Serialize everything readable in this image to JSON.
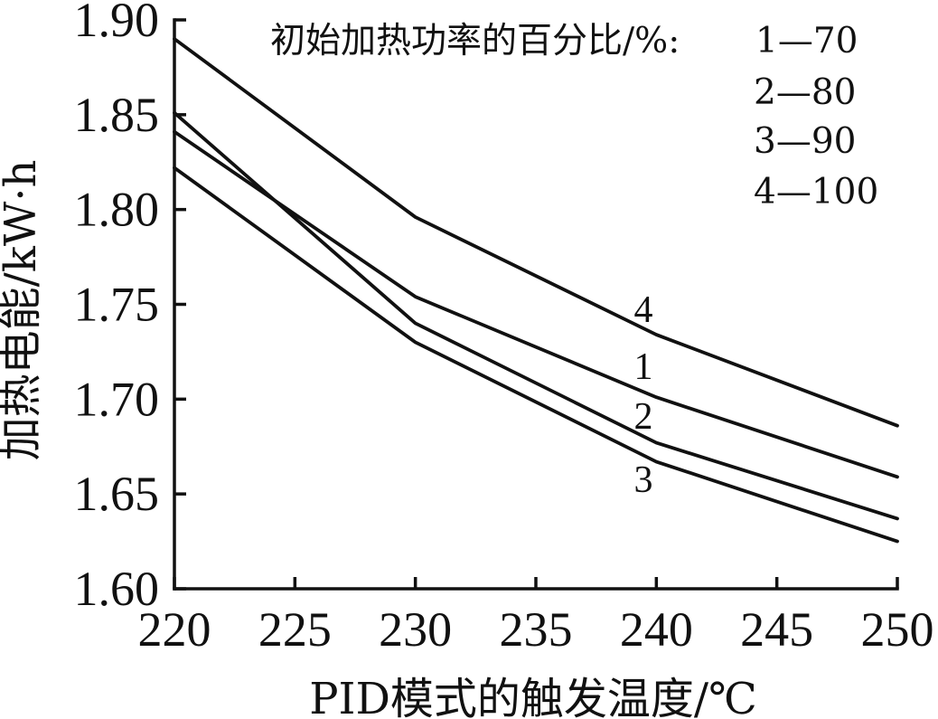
{
  "chart_data": {
    "type": "line",
    "title": "",
    "xlabel": "PID模式的触发温度/℃",
    "ylabel": "加热电能/kW·h",
    "xlim": [
      220,
      250
    ],
    "ylim": [
      1.6,
      1.9
    ],
    "x_ticks": [
      "220",
      "225",
      "230",
      "235",
      "240",
      "245",
      "250"
    ],
    "y_ticks": [
      "1.60",
      "1.65",
      "1.70",
      "1.75",
      "1.80",
      "1.85",
      "1.90"
    ],
    "grid": false,
    "legend": {
      "title": "初始加热功率的百分比/%:",
      "placement": "top-right",
      "entries": [
        "1—70",
        "2—80",
        "3—90",
        "4—100"
      ]
    },
    "x": [
      220,
      230,
      240,
      250
    ],
    "series": [
      {
        "name": "1",
        "values": [
          1.841,
          1.754,
          1.701,
          1.659
        ]
      },
      {
        "name": "2",
        "values": [
          1.851,
          1.74,
          1.677,
          1.637
        ]
      },
      {
        "name": "3",
        "values": [
          1.822,
          1.73,
          1.667,
          1.625
        ]
      },
      {
        "name": "4",
        "values": [
          1.89,
          1.796,
          1.734,
          1.686
        ]
      }
    ],
    "line_labels": [
      "4",
      "1",
      "2",
      "3"
    ]
  }
}
